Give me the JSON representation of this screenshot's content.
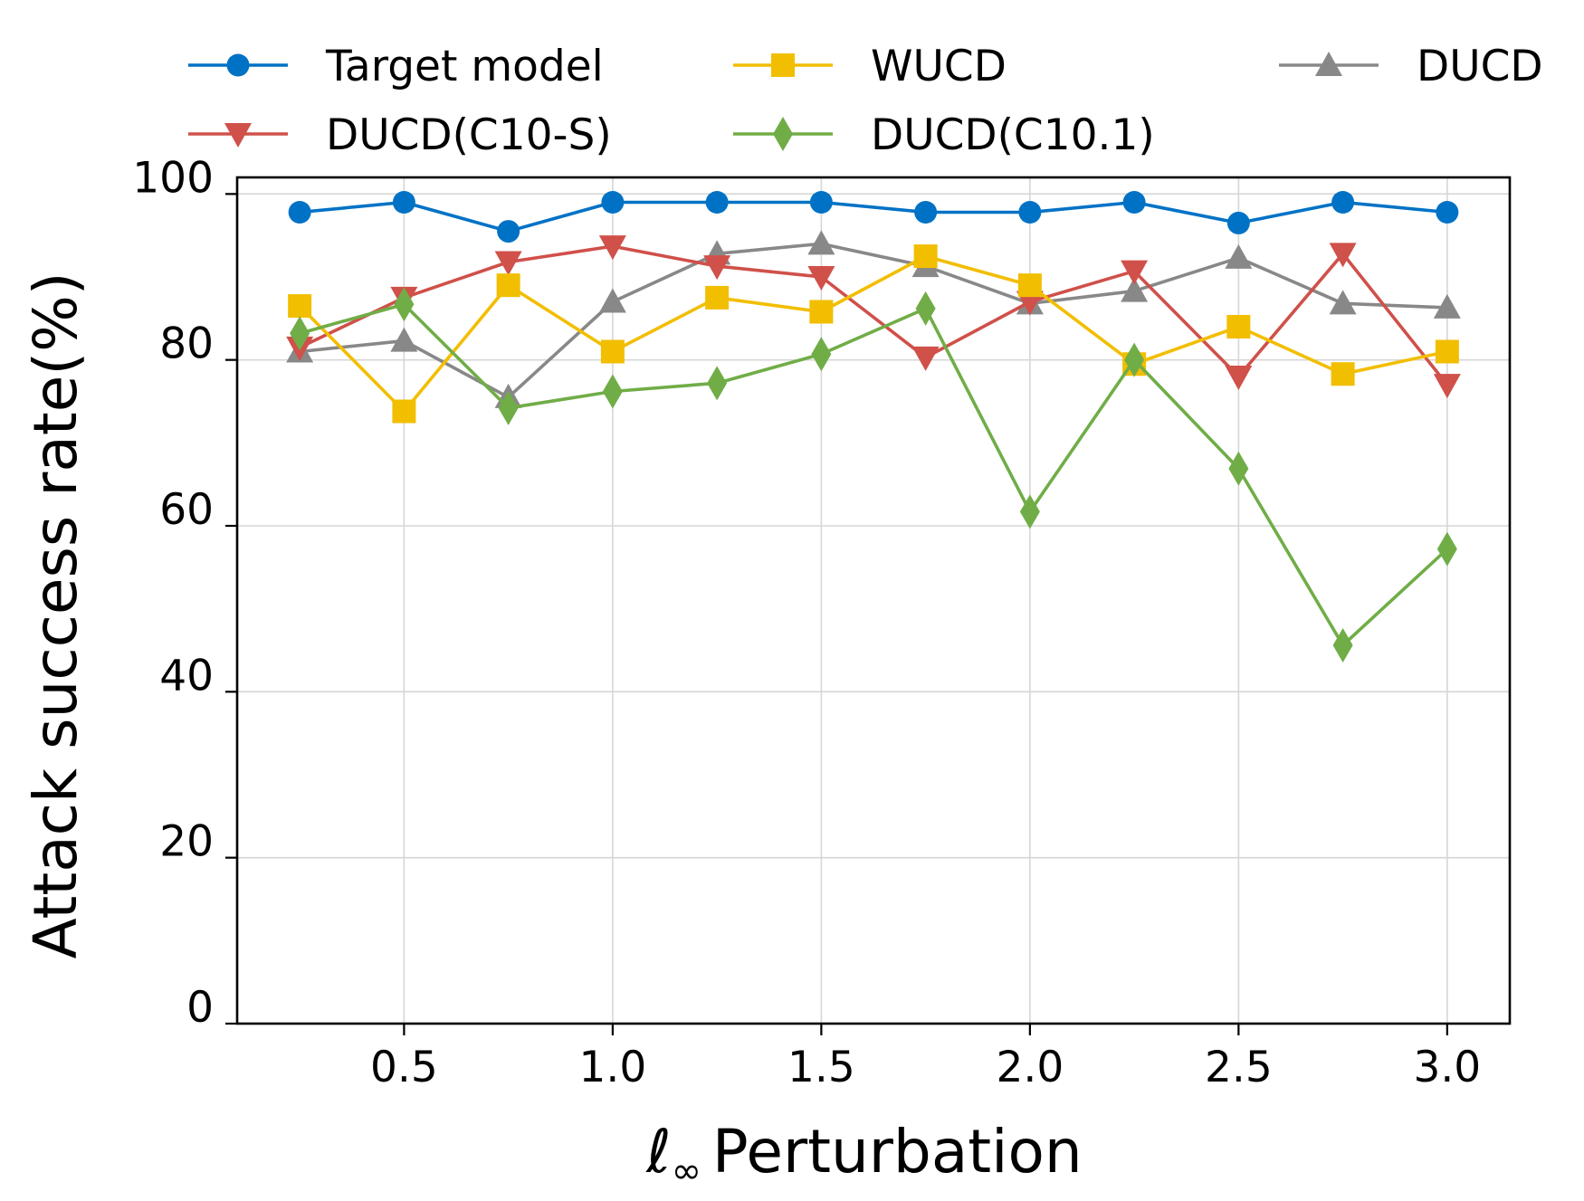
{
  "chart_data": {
    "type": "line",
    "title": "",
    "xlabel": "ℓ∞ Perturbation",
    "xlabel_symbol": "ℓ",
    "xlabel_subscript": "∞",
    "xlabel_text": "Perturbation",
    "ylabel": "Attack success rate(%)",
    "x": [
      0.25,
      0.5,
      0.75,
      1.0,
      1.25,
      1.5,
      1.75,
      2.0,
      2.25,
      2.5,
      2.75,
      3.0
    ],
    "xlim": [
      0.1,
      3.15
    ],
    "ylim": [
      0,
      102
    ],
    "xticks": [
      0.5,
      1.0,
      1.5,
      2.0,
      2.5,
      3.0
    ],
    "xtick_labels": [
      "0.5",
      "1.0",
      "1.5",
      "2.0",
      "2.5",
      "3.0"
    ],
    "yticks": [
      0,
      20,
      40,
      60,
      80,
      100
    ],
    "ytick_labels": [
      "0",
      "20",
      "40",
      "60",
      "80",
      "100"
    ],
    "grid": true,
    "legend_position": "top",
    "series": [
      {
        "name": "Target model",
        "color": "#0072C6",
        "marker": "circle",
        "values": [
          97.8,
          99.0,
          95.5,
          99.0,
          99.0,
          99.0,
          97.8,
          97.8,
          99.0,
          96.5,
          99.0,
          97.8
        ]
      },
      {
        "name": "WUCD",
        "color": "#F2BE00",
        "marker": "square",
        "values": [
          86.5,
          73.8,
          89.0,
          81.0,
          87.5,
          85.8,
          92.5,
          89.0,
          79.5,
          84.0,
          78.3,
          81.0
        ]
      },
      {
        "name": "DUCD",
        "color": "#888888",
        "marker": "triangle-up",
        "values": [
          81.0,
          82.3,
          75.5,
          87.0,
          92.8,
          94.0,
          91.3,
          86.8,
          88.3,
          92.3,
          86.8,
          86.3
        ]
      },
      {
        "name": "DUCD(C10-S)",
        "color": "#D0504A",
        "marker": "triangle-down",
        "values": [
          81.5,
          87.5,
          91.8,
          93.7,
          91.3,
          90.0,
          80.3,
          87.0,
          90.7,
          78.0,
          92.8,
          77.0
        ]
      },
      {
        "name": "DUCD(C10.1)",
        "color": "#70AD47",
        "marker": "diamond",
        "values": [
          83.2,
          86.7,
          74.2,
          76.2,
          77.2,
          80.7,
          86.2,
          61.7,
          80.0,
          66.9,
          45.6,
          57.2
        ]
      }
    ]
  }
}
